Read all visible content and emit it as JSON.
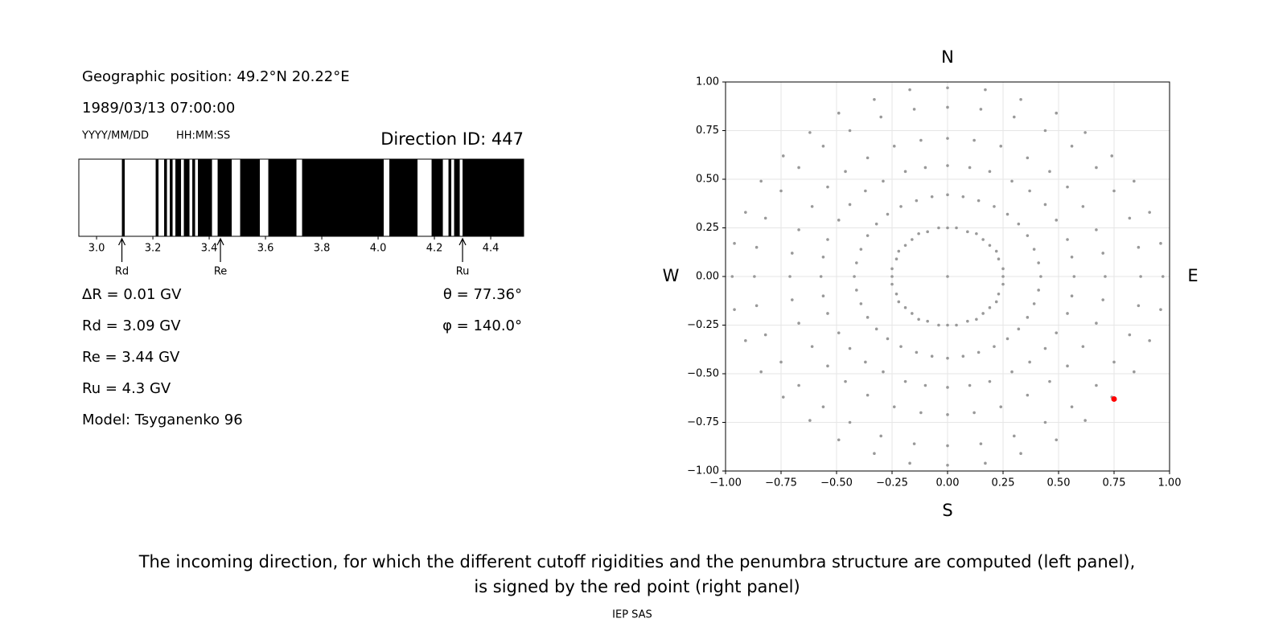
{
  "header": {
    "position": "Geographic position: 49.2°N 20.22°E",
    "datetime": "1989/03/13 07:00:00",
    "date_format": "YYYY/MM/DD",
    "time_format": "HH:MM:SS",
    "direction_id": "Direction ID: 447"
  },
  "results": {
    "delta_r": "ΔR = 0.01 GV",
    "rd": "Rd = 3.09 GV",
    "re": "Re = 3.44 GV",
    "ru": "Ru = 4.3 GV",
    "model": "Model: Tsyganenko 96",
    "theta": "θ = 77.36°",
    "phi": "φ = 140.0°"
  },
  "chart_data": [
    {
      "type": "penumbra",
      "xlim": [
        2.937,
        4.517
      ],
      "xticks": [
        {
          "value": 3,
          "label": "3.0"
        },
        3.2,
        3.4,
        3.6,
        3.8,
        {
          "value": 4,
          "label": "4.0"
        },
        4.2,
        4.4
      ],
      "black_intervals": [
        [
          3.09,
          3.1
        ],
        [
          3.21,
          3.22
        ],
        [
          3.24,
          3.25
        ],
        [
          3.26,
          3.27
        ],
        [
          3.28,
          3.3
        ],
        [
          3.31,
          3.33
        ],
        [
          3.34,
          3.35
        ],
        [
          3.36,
          3.41
        ],
        [
          3.43,
          3.48
        ],
        [
          3.51,
          3.58
        ],
        [
          3.61,
          3.71
        ],
        [
          3.73,
          4.02
        ],
        [
          4.04,
          4.14
        ],
        [
          4.19,
          4.23
        ],
        [
          4.25,
          4.26
        ],
        [
          4.27,
          4.29
        ],
        [
          4.3,
          4.517
        ]
      ],
      "markers": [
        {
          "label": "Rd",
          "value": 3.09
        },
        {
          "label": "Re",
          "value": 3.44
        },
        {
          "label": "Ru",
          "value": 4.3
        }
      ]
    },
    {
      "type": "scatter",
      "xlim": [
        -1,
        1
      ],
      "ylim": [
        -1,
        1
      ],
      "grid": true,
      "xticks": [
        {
          "value": -1,
          "label": "−1.00"
        },
        {
          "value": -0.75,
          "label": "−0.75"
        },
        {
          "value": -0.5,
          "label": "−0.50"
        },
        {
          "value": -0.25,
          "label": "−0.25"
        },
        {
          "value": 0,
          "label": "0.00"
        },
        {
          "value": 0.25,
          "label": "0.25"
        },
        {
          "value": 0.5,
          "label": "0.50"
        },
        {
          "value": 0.75,
          "label": "0.75"
        },
        {
          "value": 1,
          "label": "1.00"
        }
      ],
      "yticks": [
        {
          "value": -1,
          "label": "−1.00"
        },
        {
          "value": -0.75,
          "label": "−0.75"
        },
        {
          "value": -0.5,
          "label": "−0.50"
        },
        {
          "value": -0.25,
          "label": "−0.25"
        },
        {
          "value": 0,
          "label": "0.00"
        },
        {
          "value": 0.25,
          "label": "0.25"
        },
        {
          "value": 0.5,
          "label": "0.50"
        },
        {
          "value": 0.75,
          "label": "0.75"
        },
        {
          "value": 1,
          "label": "1.00"
        }
      ],
      "direction_labels": {
        "north": "N",
        "south": "S",
        "west": "W",
        "east": "E"
      },
      "series": [
        {
          "color": "#999999",
          "x": [
            0,
            0.25,
            0.25,
            0.23,
            0.22,
            0.19,
            0.16,
            0.13,
            0.09,
            0.04,
            0,
            -0.04,
            -0.09,
            -0.13,
            -0.16,
            -0.19,
            -0.22,
            -0.23,
            -0.25,
            -0.25,
            -0.25,
            -0.23,
            -0.22,
            -0.19,
            -0.16,
            -0.13,
            -0.09,
            -0.04,
            0,
            0.04,
            0.09,
            0.13,
            0.16,
            0.19,
            0.22,
            0.23,
            0.25,
            0.42,
            0.41,
            0.39,
            0.36,
            0.32,
            0.27,
            0.21,
            0.14,
            0.07,
            0,
            -0.07,
            -0.14,
            -0.21,
            -0.27,
            -0.32,
            -0.36,
            -0.39,
            -0.41,
            -0.42,
            -0.41,
            -0.39,
            -0.36,
            -0.32,
            -0.27,
            -0.21,
            -0.14,
            -0.07,
            0,
            0.07,
            0.14,
            0.21,
            0.27,
            0.32,
            0.36,
            0.39,
            0.41,
            0.57,
            0.56,
            0.54,
            0.49,
            0.44,
            0.37,
            0.29,
            0.19,
            0.1,
            0,
            -0.1,
            -0.19,
            -0.29,
            -0.37,
            -0.44,
            -0.49,
            -0.54,
            -0.56,
            -0.57,
            -0.56,
            -0.54,
            -0.49,
            -0.44,
            -0.37,
            -0.29,
            -0.19,
            -0.1,
            0,
            0.1,
            0.19,
            0.29,
            0.37,
            0.44,
            0.49,
            0.54,
            0.56,
            0.71,
            0.7,
            0.67,
            0.61,
            0.54,
            0.46,
            0.36,
            0.24,
            0.12,
            0,
            -0.12,
            -0.24,
            -0.36,
            -0.46,
            -0.54,
            -0.61,
            -0.67,
            -0.7,
            -0.71,
            -0.7,
            -0.67,
            -0.61,
            -0.54,
            -0.46,
            -0.36,
            -0.24,
            -0.12,
            0,
            0.12,
            0.24,
            0.36,
            0.46,
            0.54,
            0.61,
            0.67,
            0.7,
            0.87,
            0.86,
            0.82,
            0.75,
            0.67,
            0.56,
            0.44,
            0.3,
            0.15,
            0,
            -0.15,
            -0.3,
            -0.44,
            -0.56,
            -0.67,
            -0.75,
            -0.82,
            -0.86,
            -0.87,
            -0.86,
            -0.82,
            -0.75,
            -0.67,
            -0.56,
            -0.44,
            -0.3,
            -0.15,
            0,
            0.15,
            0.3,
            0.44,
            0.56,
            0.67,
            0.75,
            0.82,
            0.86,
            0.97,
            0.96,
            0.91,
            0.84,
            0.74,
            0.62,
            0.49,
            0.33,
            0.17,
            0,
            -0.17,
            -0.33,
            -0.49,
            -0.62,
            -0.74,
            -0.84,
            -0.91,
            -0.96,
            -0.97,
            -0.96,
            -0.91,
            -0.84,
            -0.74,
            -0.62,
            -0.49,
            -0.33,
            -0.17,
            0,
            0.17,
            0.33,
            0.49,
            0.62,
            0.74,
            0.84,
            0.91,
            0.96
          ],
          "y": [
            0,
            0,
            0.04,
            0.09,
            0.13,
            0.16,
            0.19,
            0.22,
            0.23,
            0.25,
            0.25,
            0.25,
            0.23,
            0.22,
            0.19,
            0.16,
            0.13,
            0.09,
            0.04,
            0,
            -0.04,
            -0.09,
            -0.13,
            -0.16,
            -0.19,
            -0.22,
            -0.23,
            -0.25,
            -0.25,
            -0.25,
            -0.23,
            -0.22,
            -0.19,
            -0.16,
            -0.13,
            -0.09,
            -0.04,
            0,
            0.07,
            0.14,
            0.21,
            0.27,
            0.32,
            0.36,
            0.39,
            0.41,
            0.42,
            0.41,
            0.39,
            0.36,
            0.32,
            0.27,
            0.21,
            0.14,
            0.07,
            0,
            -0.07,
            -0.14,
            -0.21,
            -0.27,
            -0.32,
            -0.36,
            -0.39,
            -0.41,
            -0.42,
            -0.41,
            -0.39,
            -0.36,
            -0.32,
            -0.27,
            -0.21,
            -0.14,
            -0.07,
            0,
            0.1,
            0.19,
            0.29,
            0.37,
            0.44,
            0.49,
            0.54,
            0.56,
            0.57,
            0.56,
            0.54,
            0.49,
            0.44,
            0.37,
            0.29,
            0.19,
            0.1,
            0,
            -0.1,
            -0.19,
            -0.29,
            -0.37,
            -0.44,
            -0.49,
            -0.54,
            -0.56,
            -0.57,
            -0.56,
            -0.54,
            -0.49,
            -0.44,
            -0.37,
            -0.29,
            -0.19,
            -0.1,
            0,
            0.12,
            0.24,
            0.36,
            0.46,
            0.54,
            0.61,
            0.67,
            0.7,
            0.71,
            0.7,
            0.67,
            0.61,
            0.54,
            0.46,
            0.36,
            0.24,
            0.12,
            0,
            -0.12,
            -0.24,
            -0.36,
            -0.46,
            -0.54,
            -0.61,
            -0.67,
            -0.7,
            -0.71,
            -0.7,
            -0.67,
            -0.61,
            -0.54,
            -0.46,
            -0.36,
            -0.24,
            -0.12,
            0,
            0.15,
            0.3,
            0.44,
            0.56,
            0.67,
            0.75,
            0.82,
            0.86,
            0.87,
            0.86,
            0.82,
            0.75,
            0.67,
            0.56,
            0.44,
            0.3,
            0.15,
            0,
            -0.15,
            -0.3,
            -0.44,
            -0.56,
            -0.67,
            -0.75,
            -0.82,
            -0.86,
            -0.87,
            -0.86,
            -0.82,
            -0.75,
            -0.67,
            -0.56,
            -0.44,
            -0.3,
            -0.15,
            0,
            0.17,
            0.33,
            0.49,
            0.62,
            0.74,
            0.84,
            0.91,
            0.96,
            0.97,
            0.96,
            0.91,
            0.84,
            0.74,
            0.62,
            0.49,
            0.33,
            0.17,
            0,
            -0.17,
            -0.33,
            -0.49,
            -0.62,
            -0.74,
            -0.84,
            -0.91,
            -0.96,
            -0.97,
            -0.96,
            -0.91,
            -0.84,
            -0.74,
            -0.62,
            -0.49,
            -0.33,
            -0.17
          ]
        },
        {
          "color": "#ff0000",
          "x": [
            0.75
          ],
          "y": [
            -0.63
          ]
        }
      ]
    }
  ],
  "caption": [
    "The incoming direction, for which the different cutoff rigidities and the penumbra structure are computed (left panel),",
    "is signed by the red point (right panel)"
  ],
  "footer": "IEP SAS"
}
